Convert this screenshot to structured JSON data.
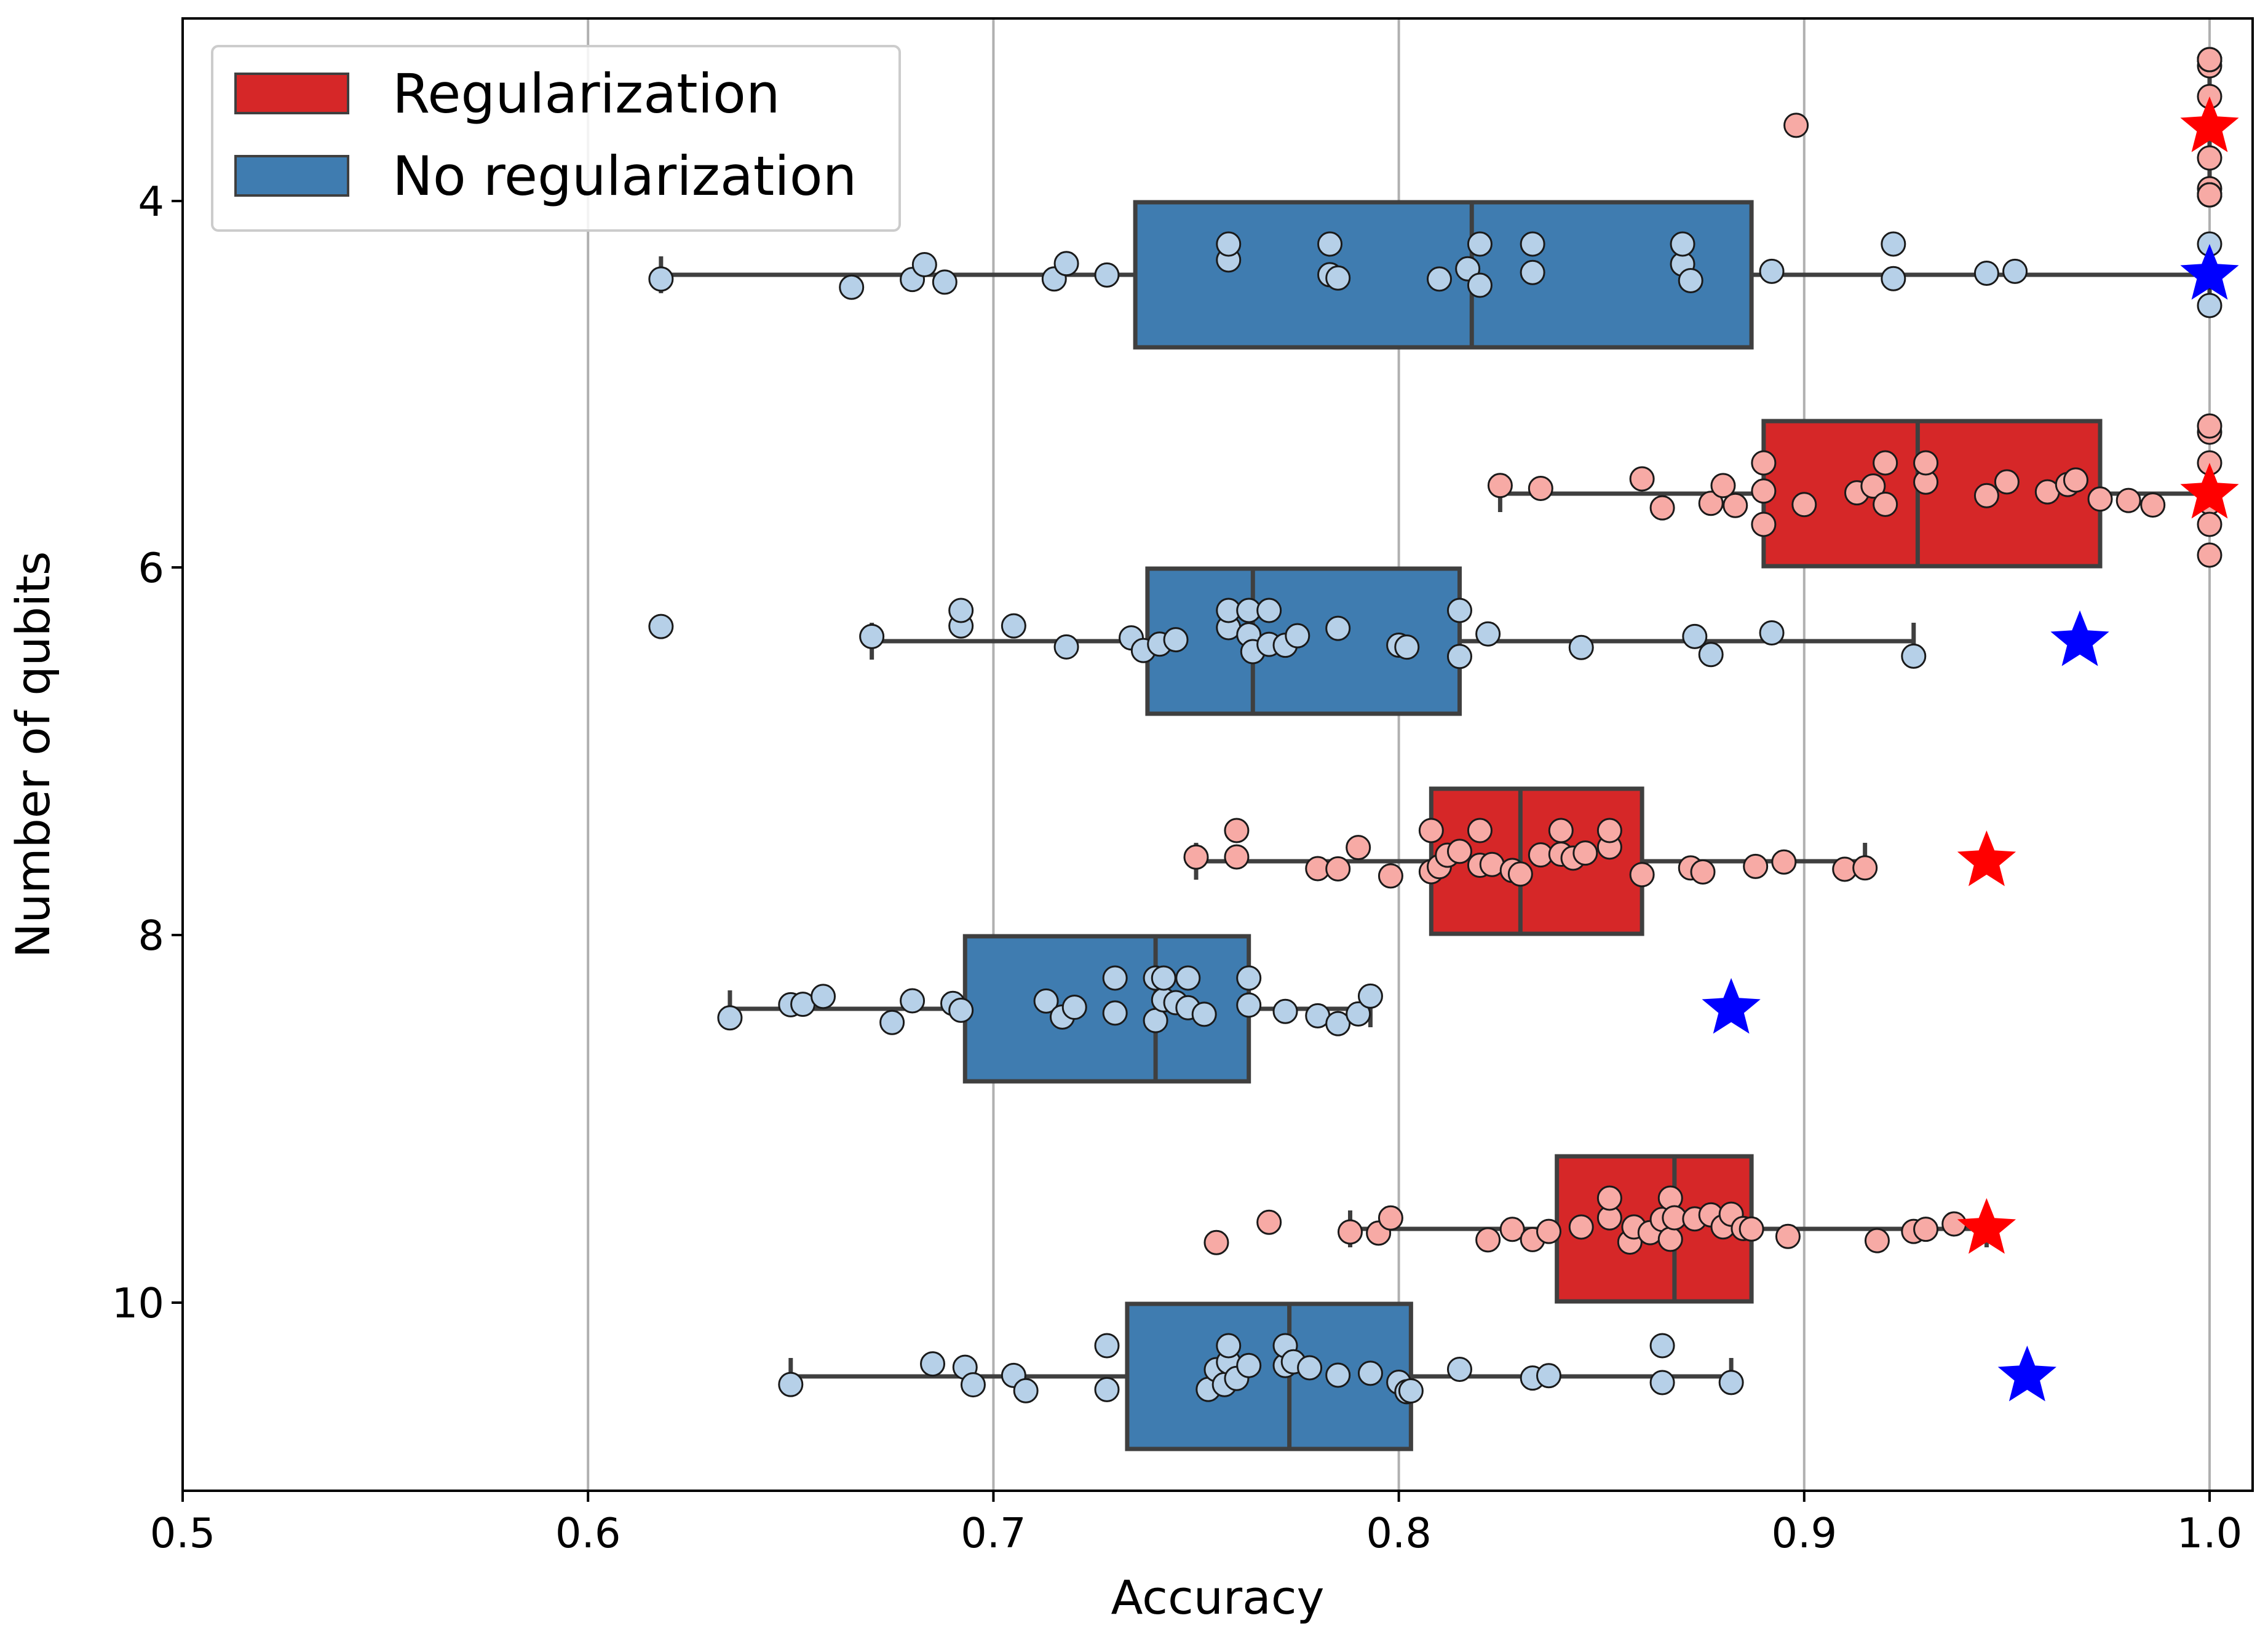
{
  "chart_data": {
    "type": "boxplot",
    "orientation": "horizontal",
    "xlabel": "Accuracy",
    "ylabel": "Number of qubits",
    "xlim": [
      0.5,
      1.01
    ],
    "xticks": [
      "0.5",
      "0.6",
      "0.7",
      "0.8",
      "0.9",
      "1.0"
    ],
    "categories": [
      "4",
      "6",
      "8",
      "10"
    ],
    "grid": "vertical",
    "legend": {
      "position": "top-left",
      "entries": [
        {
          "label": "Regularization",
          "color": "#d62728"
        },
        {
          "label": "No regularization",
          "color": "#3f7cb0"
        }
      ]
    },
    "colors": {
      "reg_box": "#d62728",
      "noreg_box": "#3f7cb0",
      "reg_point": "#f7aaa5",
      "noreg_point": "#b6d0e8",
      "reg_star": "#ff0000",
      "noreg_star": "#0000ff",
      "box_edge": "#3f3f3f",
      "grid": "#b0b0b0"
    },
    "series": [
      {
        "name": "Regularization",
        "groups": [
          {
            "qubits": "4",
            "box": {
              "whisker_low": 1.0,
              "q1": 1.0,
              "median": 1.0,
              "q3": 1.0,
              "whisker_high": 1.0
            },
            "points": [
              0.898,
              1.0,
              1.0,
              1.0,
              1.0,
              1.0,
              1.0,
              1.0,
              1.0,
              1.0,
              1.0,
              1.0,
              1.0,
              1.0,
              1.0,
              1.0,
              1.0,
              1.0,
              1.0,
              1.0,
              1.0,
              1.0,
              1.0,
              1.0,
              1.0
            ],
            "star": 1.0
          },
          {
            "qubits": "6",
            "box": {
              "whisker_low": 0.825,
              "q1": 0.89,
              "median": 0.928,
              "q3": 0.973,
              "whisker_high": 1.0
            },
            "points": [
              0.825,
              0.835,
              0.86,
              0.865,
              0.877,
              0.88,
              0.883,
              0.89,
              0.89,
              0.89,
              0.9,
              0.913,
              0.917,
              0.92,
              0.92,
              0.93,
              0.93,
              0.945,
              0.95,
              0.96,
              0.965,
              0.967,
              0.973,
              0.98,
              0.986,
              1.0,
              1.0,
              1.0,
              1.0,
              1.0,
              1.0
            ],
            "star": 1.0
          },
          {
            "qubits": "8",
            "box": {
              "whisker_low": 0.75,
              "q1": 0.808,
              "median": 0.83,
              "q3": 0.86,
              "whisker_high": 0.915
            },
            "points": [
              0.75,
              0.76,
              0.76,
              0.78,
              0.785,
              0.79,
              0.798,
              0.808,
              0.808,
              0.81,
              0.812,
              0.815,
              0.82,
              0.82,
              0.823,
              0.828,
              0.83,
              0.835,
              0.84,
              0.84,
              0.843,
              0.846,
              0.852,
              0.852,
              0.86,
              0.872,
              0.875,
              0.888,
              0.895,
              0.91,
              0.915
            ],
            "star": 0.945
          },
          {
            "qubits": "10",
            "box": {
              "whisker_low": 0.788,
              "q1": 0.839,
              "median": 0.868,
              "q3": 0.887,
              "whisker_high": 0.945
            },
            "points": [
              0.755,
              0.768,
              0.788,
              0.795,
              0.798,
              0.822,
              0.828,
              0.833,
              0.837,
              0.845,
              0.852,
              0.852,
              0.857,
              0.858,
              0.862,
              0.865,
              0.867,
              0.867,
              0.868,
              0.873,
              0.877,
              0.88,
              0.882,
              0.885,
              0.887,
              0.896,
              0.918,
              0.927,
              0.93,
              0.937
            ],
            "star": 0.945
          }
        ]
      },
      {
        "name": "No regularization",
        "groups": [
          {
            "qubits": "4",
            "box": {
              "whisker_low": 0.618,
              "q1": 0.735,
              "median": 0.818,
              "q3": 0.887,
              "whisker_high": 1.0
            },
            "points": [
              0.618,
              0.665,
              0.68,
              0.683,
              0.688,
              0.715,
              0.718,
              0.728,
              0.758,
              0.758,
              0.783,
              0.783,
              0.785,
              0.81,
              0.817,
              0.82,
              0.82,
              0.833,
              0.833,
              0.87,
              0.87,
              0.872,
              0.892,
              0.922,
              0.922,
              0.945,
              0.952,
              1.0,
              1.0,
              1.0
            ],
            "star": 1.0
          },
          {
            "qubits": "6",
            "box": {
              "whisker_low": 0.67,
              "q1": 0.738,
              "median": 0.764,
              "q3": 0.815,
              "whisker_high": 0.927
            },
            "points": [
              0.618,
              0.67,
              0.692,
              0.692,
              0.705,
              0.718,
              0.734,
              0.737,
              0.741,
              0.745,
              0.758,
              0.758,
              0.763,
              0.763,
              0.764,
              0.768,
              0.768,
              0.772,
              0.775,
              0.785,
              0.8,
              0.802,
              0.815,
              0.815,
              0.822,
              0.845,
              0.873,
              0.877,
              0.892,
              0.927
            ],
            "star": 0.968
          },
          {
            "qubits": "8",
            "box": {
              "whisker_low": 0.635,
              "q1": 0.693,
              "median": 0.74,
              "q3": 0.763,
              "whisker_high": 0.793
            },
            "points": [
              0.635,
              0.65,
              0.653,
              0.658,
              0.675,
              0.68,
              0.69,
              0.692,
              0.713,
              0.717,
              0.72,
              0.73,
              0.73,
              0.74,
              0.74,
              0.742,
              0.742,
              0.745,
              0.748,
              0.748,
              0.752,
              0.763,
              0.763,
              0.772,
              0.78,
              0.785,
              0.79,
              0.793
            ],
            "star": 0.882
          },
          {
            "qubits": "10",
            "box": {
              "whisker_low": 0.65,
              "q1": 0.733,
              "median": 0.773,
              "q3": 0.803,
              "whisker_high": 0.882
            },
            "points": [
              0.65,
              0.685,
              0.693,
              0.695,
              0.705,
              0.708,
              0.728,
              0.728,
              0.753,
              0.755,
              0.757,
              0.758,
              0.758,
              0.76,
              0.763,
              0.772,
              0.772,
              0.774,
              0.778,
              0.785,
              0.793,
              0.8,
              0.802,
              0.803,
              0.815,
              0.833,
              0.837,
              0.865,
              0.865,
              0.882
            ],
            "star": 0.955
          }
        ]
      }
    ]
  }
}
